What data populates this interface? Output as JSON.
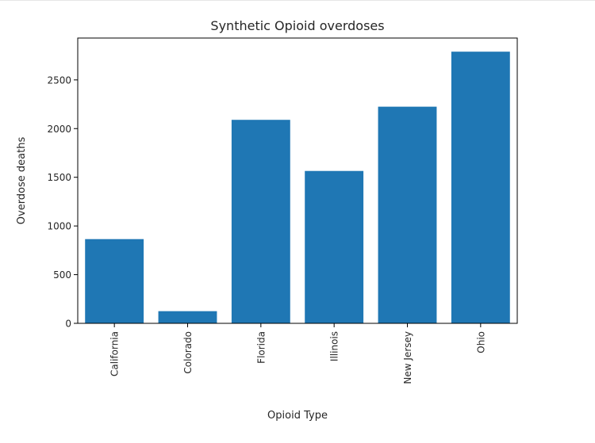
{
  "chart_data": {
    "type": "bar",
    "title": "Synthetic Opioid overdoses",
    "xlabel": "Opioid Type",
    "ylabel": "Overdose deaths",
    "categories": [
      "California",
      "Colorado",
      "Florida",
      "Illinois",
      "New Jersey",
      "Ohio"
    ],
    "values": [
      865,
      125,
      2090,
      1565,
      2225,
      2790
    ],
    "ylim": [
      0,
      2930
    ],
    "yticks": [
      0,
      500,
      1000,
      1500,
      2000,
      2500
    ],
    "ytick_labels": [
      "0",
      "500",
      "1000",
      "1500",
      "2000",
      "2500"
    ],
    "grid": false,
    "bar_color": "#1f77b4"
  }
}
